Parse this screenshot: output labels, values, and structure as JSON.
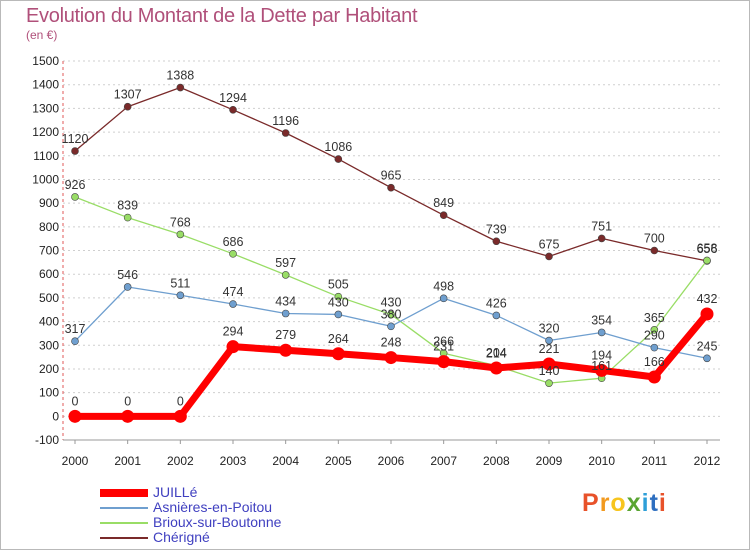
{
  "header": {
    "title": "Evolution du Montant de la Dette par Habitant",
    "subtitle": "(en €)"
  },
  "logo": {
    "text": "Proxiti",
    "colors": [
      "#e8522a",
      "#f29a1f",
      "#f7c51e",
      "#5aa532",
      "#2e9fd8",
      "#2e6fc0",
      "#e8522a"
    ]
  },
  "chart_data": {
    "type": "line",
    "categories": [
      "2000",
      "2001",
      "2002",
      "2003",
      "2004",
      "2005",
      "2006",
      "2007",
      "2008",
      "2009",
      "2010",
      "2011",
      "2012"
    ],
    "ylim": [
      -100,
      1500
    ],
    "yticks": [
      -100,
      0,
      100,
      200,
      300,
      400,
      500,
      600,
      700,
      800,
      900,
      1000,
      1100,
      1200,
      1300,
      1400,
      1500
    ],
    "grid": "horizontal dotted",
    "legend_position": "bottom-left",
    "series": [
      {
        "name": "JUILLé",
        "color": "#ff0000",
        "values": [
          0,
          0,
          0,
          294,
          279,
          264,
          248,
          231,
          204,
          221,
          194,
          166,
          432
        ]
      },
      {
        "name": "Asnières-en-Poitou",
        "color": "#6f9fcf",
        "values": [
          317,
          546,
          511,
          474,
          434,
          430,
          380,
          498,
          426,
          320,
          354,
          290,
          245
        ]
      },
      {
        "name": "Brioux-sur-Boutonne",
        "color": "#99dd66",
        "values": [
          926,
          839,
          768,
          686,
          597,
          505,
          430,
          266,
          214,
          140,
          161,
          365,
          658
        ]
      },
      {
        "name": "Chérigné",
        "color": "#7a2a2a",
        "values": [
          1120,
          1307,
          1388,
          1294,
          1196,
          1086,
          965,
          849,
          739,
          675,
          751,
          700,
          656
        ]
      }
    ]
  }
}
